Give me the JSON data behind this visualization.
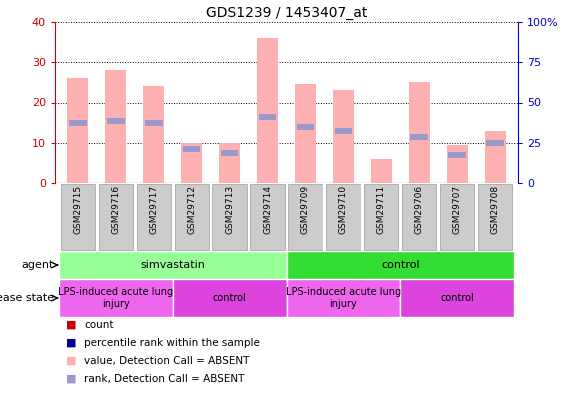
{
  "title": "GDS1239 / 1453407_at",
  "samples": [
    "GSM29715",
    "GSM29716",
    "GSM29717",
    "GSM29712",
    "GSM29713",
    "GSM29714",
    "GSM29709",
    "GSM29710",
    "GSM29711",
    "GSM29706",
    "GSM29707",
    "GSM29708"
  ],
  "bar_values": [
    26,
    28,
    24,
    10,
    10,
    36,
    24.5,
    23,
    6,
    25,
    9.5,
    13
  ],
  "rank_values": [
    15,
    15.5,
    15,
    8.5,
    7.5,
    16.5,
    14,
    13,
    0,
    11.5,
    7,
    10
  ],
  "bar_color": "#FFB0B0",
  "rank_color": "#9999CC",
  "ylim_left": [
    0,
    40
  ],
  "ylim_right": [
    0,
    100
  ],
  "yticks_left": [
    0,
    10,
    20,
    30,
    40
  ],
  "yticks_right": [
    0,
    25,
    50,
    75,
    100
  ],
  "ytick_labels_left": [
    "0",
    "10",
    "20",
    "30",
    "40"
  ],
  "ytick_labels_right": [
    "0",
    "25",
    "50",
    "75",
    "100%"
  ],
  "left_axis_color": "#CC0000",
  "right_axis_color": "#0000CC",
  "agent_groups": [
    {
      "label": "simvastatin",
      "start": 0,
      "end": 6,
      "color": "#99FF99"
    },
    {
      "label": "control",
      "start": 6,
      "end": 12,
      "color": "#33DD33"
    }
  ],
  "disease_groups": [
    {
      "label": "LPS-induced acute lung\ninjury",
      "start": 0,
      "end": 3,
      "color": "#EE66EE"
    },
    {
      "label": "control",
      "start": 3,
      "end": 6,
      "color": "#DD44DD"
    },
    {
      "label": "LPS-induced acute lung\ninjury",
      "start": 6,
      "end": 9,
      "color": "#EE66EE"
    },
    {
      "label": "control",
      "start": 9,
      "end": 12,
      "color": "#DD44DD"
    }
  ],
  "agent_label": "agent",
  "disease_label": "disease state",
  "legend_items": [
    {
      "label": "count",
      "color": "#CC0000"
    },
    {
      "label": "percentile rank within the sample",
      "color": "#000099"
    },
    {
      "label": "value, Detection Call = ABSENT",
      "color": "#FFB0B0"
    },
    {
      "label": "rank, Detection Call = ABSENT",
      "color": "#9999CC"
    }
  ],
  "bar_width": 0.55
}
